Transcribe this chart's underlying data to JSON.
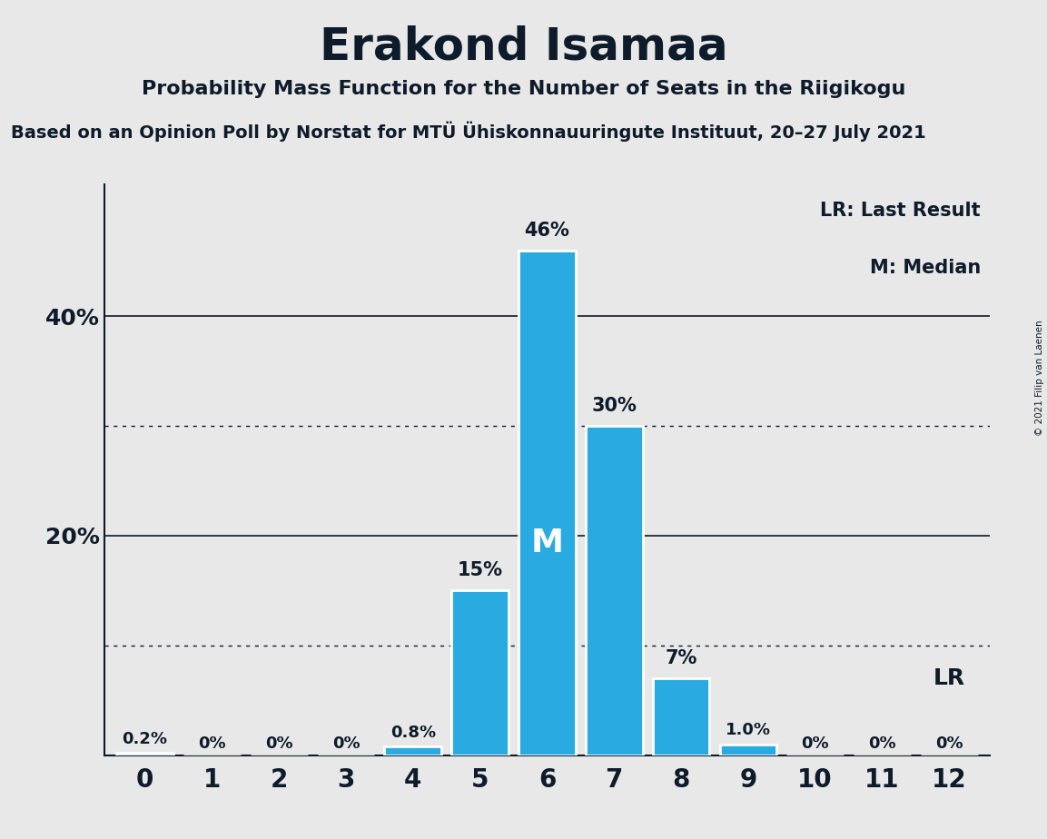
{
  "title": "Erakond Isamaa",
  "subtitle": "Probability Mass Function for the Number of Seats in the Riigikogu",
  "subsubtitle": "Based on an Opinion Poll by Norstat for MTÜ Ühiskonnauuringute Instituut, 20–27 July 2021",
  "copyright": "© 2021 Filip van Laenen",
  "categories": [
    0,
    1,
    2,
    3,
    4,
    5,
    6,
    7,
    8,
    9,
    10,
    11,
    12
  ],
  "values": [
    0.2,
    0.0,
    0.0,
    0.0,
    0.8,
    15.0,
    46.0,
    30.0,
    7.0,
    1.0,
    0.0,
    0.0,
    0.0
  ],
  "labels": [
    "0.2%",
    "0%",
    "0%",
    "0%",
    "0.8%",
    "15%",
    "46%",
    "30%",
    "7%",
    "1.0%",
    "0%",
    "0%",
    "0%"
  ],
  "bar_color": "#29ABE2",
  "background_color": "#E8E8E8",
  "text_color": "#0D1B2A",
  "median_bar": 6,
  "lr_label": "LR",
  "legend_lr": "LR: Last Result",
  "legend_m": "M: Median",
  "solid_gridlines": [
    20,
    40
  ],
  "dotted_gridlines": [
    10,
    30
  ],
  "yticks": [
    0,
    20,
    40
  ],
  "ytick_labels": [
    "",
    "20%",
    "40%"
  ],
  "ylim": [
    0,
    52
  ]
}
